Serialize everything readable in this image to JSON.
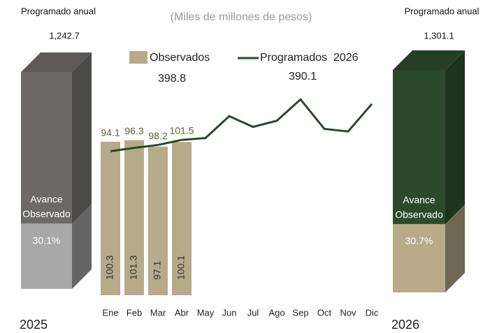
{
  "chart_data": {
    "type": "bar",
    "subtitle": "(Miles de millones de pesos)",
    "categories": [
      "Ene",
      "Feb",
      "Mar",
      "Abr",
      "May",
      "Jun",
      "Jul",
      "Ago",
      "Sep",
      "Oct",
      "Nov",
      "Dic"
    ],
    "series": [
      {
        "name": "Observados",
        "type": "bar",
        "color": "#b6aa8b",
        "values": [
          100.3,
          101.3,
          97.1,
          100.1,
          null,
          null,
          null,
          null,
          null,
          null,
          null,
          null
        ],
        "total": 398.8
      },
      {
        "name": "Programados  2026",
        "type": "line",
        "color": "#2a4a2a",
        "values": [
          94.1,
          96.3,
          98.2,
          101.5,
          102.7,
          117,
          110,
          114,
          128,
          108.7,
          107,
          125
        ],
        "total": 390.1
      }
    ]
  },
  "summary": [
    {
      "year": "2025",
      "label": "Programado anual",
      "total": 1242.7,
      "total_label": "1,242.7",
      "progress_label": "Avance Observado",
      "percent": 30.1,
      "percent_label": "30.1%",
      "top_color": "#6c6968",
      "bottom_color": "#a8a8a8"
    },
    {
      "year": "2026",
      "label": "Programado anual",
      "total": 1301.1,
      "total_label": "1,301.1",
      "progress_label": "Avance Observado",
      "percent": 30.7,
      "percent_label": "30.7%",
      "top_color": "#2b4a2b",
      "bottom_color": "#b9ab8a"
    }
  ]
}
